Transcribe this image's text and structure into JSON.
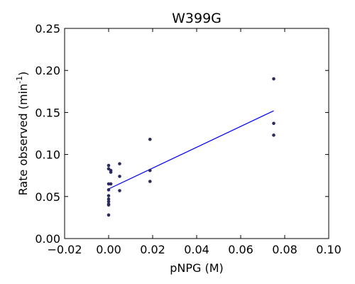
{
  "chart_data": {
    "type": "scatter",
    "title": "W399G",
    "xlabel": "pNPG (M)",
    "ylabel": {
      "prefix": "Rate observed (min",
      "superscript": "-1",
      "suffix": ")"
    },
    "xlim": [
      -0.02,
      0.1
    ],
    "ylim": [
      0.0,
      0.25
    ],
    "xticks": [
      -0.02,
      0.0,
      0.02,
      0.04,
      0.06,
      0.08,
      0.1
    ],
    "xtick_labels": [
      "−0.02",
      "0.00",
      "0.02",
      "0.04",
      "0.06",
      "0.08",
      "0.10"
    ],
    "yticks": [
      0.0,
      0.05,
      0.1,
      0.15,
      0.2,
      0.25
    ],
    "ytick_labels": [
      "0.00",
      "0.05",
      "0.10",
      "0.15",
      "0.20",
      "0.25"
    ],
    "grid": false,
    "point_color": "#2b2b5c",
    "fit_color": "#0000ff",
    "points": [
      {
        "x": 0.0,
        "y": 0.087
      },
      {
        "x": 0.0,
        "y": 0.083
      },
      {
        "x": 0.0,
        "y": 0.065
      },
      {
        "x": 0.0,
        "y": 0.058
      },
      {
        "x": 0.0,
        "y": 0.051
      },
      {
        "x": 0.0,
        "y": 0.047
      },
      {
        "x": 0.0,
        "y": 0.044
      },
      {
        "x": 0.0,
        "y": 0.041
      },
      {
        "x": 0.0,
        "y": 0.04
      },
      {
        "x": 0.0,
        "y": 0.028
      },
      {
        "x": 0.001,
        "y": 0.081
      },
      {
        "x": 0.001,
        "y": 0.079
      },
      {
        "x": 0.001,
        "y": 0.065
      },
      {
        "x": 0.005,
        "y": 0.089
      },
      {
        "x": 0.005,
        "y": 0.074
      },
      {
        "x": 0.005,
        "y": 0.057
      },
      {
        "x": 0.0188,
        "y": 0.118
      },
      {
        "x": 0.0188,
        "y": 0.081
      },
      {
        "x": 0.0188,
        "y": 0.068
      },
      {
        "x": 0.075,
        "y": 0.19
      },
      {
        "x": 0.075,
        "y": 0.137
      },
      {
        "x": 0.075,
        "y": 0.123
      }
    ],
    "fit_line": {
      "x": [
        0.0,
        0.075
      ],
      "y": [
        0.059,
        0.152
      ]
    }
  }
}
